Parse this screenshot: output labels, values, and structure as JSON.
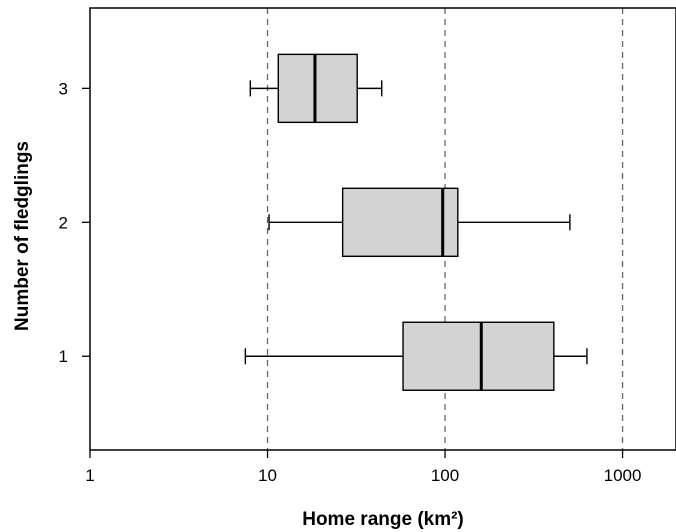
{
  "chart_data": {
    "type": "boxplot",
    "orientation": "horizontal",
    "xlabel": "Home range (km²)",
    "ylabel": "Number of fledglings",
    "x_scale": "log",
    "xlim": [
      1,
      2000
    ],
    "ylim": [
      0.3,
      3.6
    ],
    "x_ticks": [
      1,
      10,
      100,
      1000
    ],
    "x_tick_labels": [
      "1",
      "10",
      "100",
      "1000"
    ],
    "y_ticks": [
      1,
      2,
      3
    ],
    "y_tick_labels": [
      "1",
      "2",
      "3"
    ],
    "reference_lines": [
      10,
      100,
      1000
    ],
    "box_fill": "#d3d3d3",
    "boxes": [
      {
        "category": "1",
        "whisker_low": 7.5,
        "q1": 58,
        "median": 160,
        "q3": 410,
        "whisker_high": 630
      },
      {
        "category": "2",
        "whisker_low": 10.2,
        "q1": 26.5,
        "median": 97,
        "q3": 118,
        "whisker_high": 505
      },
      {
        "category": "3",
        "whisker_low": 8.0,
        "q1": 11.5,
        "median": 18.5,
        "q3": 32,
        "whisker_high": 44
      }
    ]
  }
}
